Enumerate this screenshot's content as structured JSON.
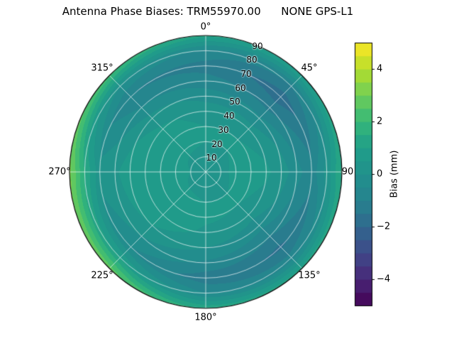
{
  "title": "Antenna Phase Biases: TRM55970.00      NONE GPS-L1",
  "chart_data": {
    "type": "heatmap",
    "subtype": "polar_filled_contour",
    "title": "Antenna Phase Biases: TRM55970.00      NONE GPS-L1",
    "colorbar": {
      "label": "Bias (mm)",
      "ticks": [
        -4,
        -2,
        0,
        2,
        4
      ],
      "tick_labels": [
        "−4",
        "−2",
        "0",
        "2",
        "4"
      ]
    },
    "levels": {
      "min": -5,
      "max": 5,
      "step": 0.5
    },
    "angular_labels": [
      {
        "angle": 0,
        "text": "0°"
      },
      {
        "angle": 45,
        "text": "45°"
      },
      {
        "angle": 90,
        "text": "90"
      },
      {
        "angle": 135,
        "text": "135°"
      },
      {
        "angle": 180,
        "text": "180°"
      },
      {
        "angle": 225,
        "text": "225°"
      },
      {
        "angle": 270,
        "text": "270°"
      },
      {
        "angle": 315,
        "text": "315°"
      }
    ],
    "radial_ticks": [
      "10",
      "20",
      "30",
      "40",
      "50",
      "60",
      "70",
      "80",
      "90"
    ],
    "colormap": {
      "name": "viridis",
      "stops": [
        {
          "t": 0.0,
          "color": "#440154"
        },
        {
          "t": 0.1,
          "color": "#482878"
        },
        {
          "t": 0.2,
          "color": "#3e4989"
        },
        {
          "t": 0.3,
          "color": "#31688e"
        },
        {
          "t": 0.4,
          "color": "#26828e"
        },
        {
          "t": 0.5,
          "color": "#21918c"
        },
        {
          "t": 0.6,
          "color": "#1f9e89"
        },
        {
          "t": 0.7,
          "color": "#35b779"
        },
        {
          "t": 0.8,
          "color": "#6ece58"
        },
        {
          "t": 0.9,
          "color": "#b5de2b"
        },
        {
          "t": 1.0,
          "color": "#fde725"
        }
      ]
    },
    "grid": {
      "azimuth_deg": [
        0,
        45,
        90,
        135,
        180,
        225,
        270,
        315,
        360
      ],
      "zenith_deg": [
        0,
        10,
        20,
        30,
        40,
        50,
        60,
        70,
        80,
        90
      ],
      "bias_mm": [
        [
          0.3,
          0.4,
          0.5,
          0.5,
          0.3,
          -0.2,
          -0.8,
          -1.2,
          -0.6,
          1.2
        ],
        [
          0.3,
          0.4,
          0.5,
          0.5,
          0.2,
          -0.4,
          -1.2,
          -1.8,
          -1.0,
          1.0
        ],
        [
          0.3,
          0.4,
          0.6,
          0.7,
          0.6,
          0.3,
          -0.3,
          -0.8,
          0.2,
          1.6
        ],
        [
          0.3,
          0.4,
          0.5,
          0.5,
          0.2,
          -0.3,
          -1.0,
          -1.6,
          -0.8,
          1.2
        ],
        [
          0.3,
          0.4,
          0.5,
          0.6,
          0.4,
          0.0,
          -0.6,
          -1.3,
          -0.5,
          1.4
        ],
        [
          0.3,
          0.4,
          0.6,
          0.8,
          0.8,
          0.5,
          0.0,
          -0.5,
          1.0,
          2.8
        ],
        [
          0.3,
          0.5,
          0.7,
          0.9,
          1.0,
          0.8,
          0.4,
          0.2,
          1.5,
          3.2
        ],
        [
          0.3,
          0.4,
          0.6,
          0.7,
          0.6,
          0.2,
          -0.5,
          -1.0,
          0.0,
          2.2
        ],
        [
          0.3,
          0.4,
          0.5,
          0.5,
          0.3,
          -0.2,
          -0.8,
          -1.2,
          -0.6,
          1.2
        ]
      ]
    }
  }
}
